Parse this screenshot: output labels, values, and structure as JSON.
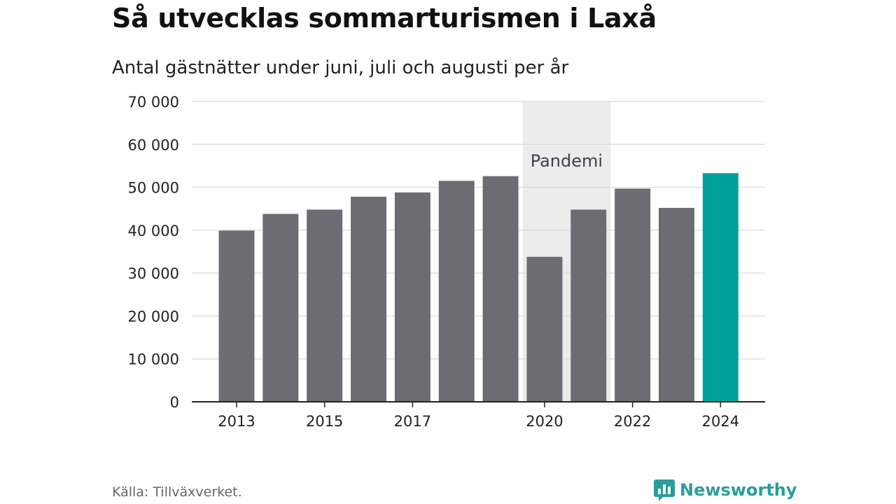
{
  "chart_data": {
    "type": "bar",
    "title": "Så utvecklas sommarturismen i Laxå",
    "subtitle": "Antal gästnätter under juni, juli och augusti per år",
    "categories": [
      "2013",
      "2014",
      "2015",
      "2016",
      "2017",
      "2018",
      "2019",
      "2020",
      "2021",
      "2022",
      "2023",
      "2024"
    ],
    "values": [
      39900,
      43800,
      44800,
      47800,
      48800,
      51500,
      52600,
      33800,
      44800,
      49700,
      45200,
      53300
    ],
    "x_tick_labels": [
      "2013",
      "2015",
      "2017",
      "2020",
      "2022",
      "2024"
    ],
    "y_tick_labels": [
      "0",
      "10 000",
      "20 000",
      "30 000",
      "40 000",
      "50 000",
      "60 000",
      "70 000"
    ],
    "ylim": [
      0,
      70000
    ],
    "grid": true,
    "highlight_category": "2024",
    "annotation": {
      "label": "Pandemi",
      "from": "2020",
      "to": "2021"
    },
    "colors": {
      "bar": "#6d6c72",
      "highlight": "#00a19a",
      "band": "#ececec",
      "grid": "#dadada",
      "axis": "#222222"
    }
  },
  "footer": {
    "source": "Källa: Tillväxverket.",
    "brand": "Newsworthy",
    "brand_icon": "newsworthy-logo-icon",
    "brand_color": "#2a9d9a"
  }
}
